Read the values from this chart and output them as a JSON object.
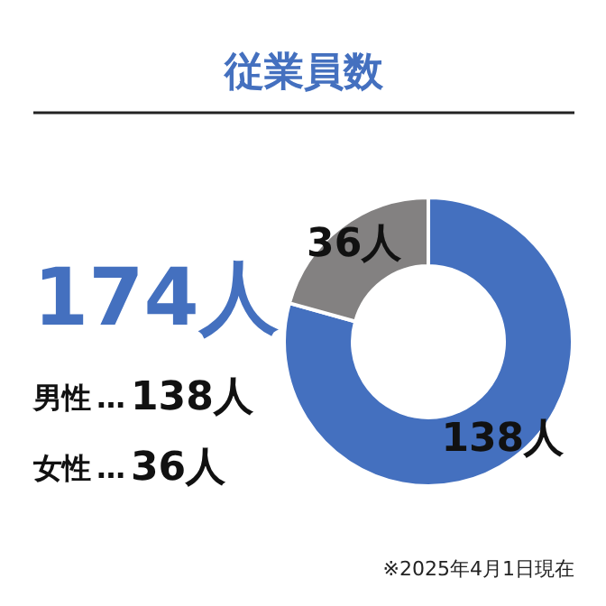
{
  "chart_data": {
    "type": "donut",
    "title": "従業員数",
    "categories": [
      null,
      null
    ],
    "values": [
      138,
      36
    ],
    "colors": [
      "#4470bf",
      "#838181"
    ],
    "value_labels": [
      "138人",
      "36人"
    ],
    "annotations": [
      "174人",
      "男性",
      "…",
      "女性",
      "…",
      "※2025年4月1日現在"
    ]
  }
}
